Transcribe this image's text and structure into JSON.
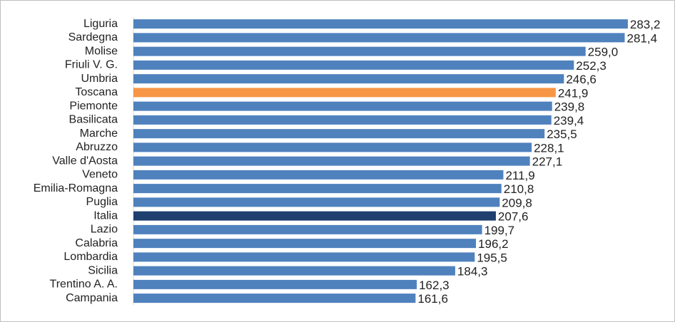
{
  "chart_data": {
    "type": "bar",
    "orientation": "horizontal",
    "categories": [
      "Liguria",
      "Sardegna",
      "Molise",
      "Friuli V. G.",
      "Umbria",
      "Toscana",
      "Piemonte",
      "Basilicata",
      "Marche",
      "Abruzzo",
      "Valle d'Aosta",
      "Veneto",
      "Emilia-Romagna",
      "Puglia",
      "Italia",
      "Lazio",
      "Calabria",
      "Lombardia",
      "Sicilia",
      "Trentino A. A.",
      "Campania"
    ],
    "values": [
      283.2,
      281.4,
      259.0,
      252.3,
      246.6,
      241.9,
      239.8,
      239.4,
      235.5,
      228.1,
      227.1,
      211.9,
      210.8,
      209.8,
      207.6,
      199.7,
      196.2,
      195.5,
      184.3,
      162.3,
      161.6
    ],
    "value_labels": [
      "283,2",
      "281,4",
      "259,0",
      "252,3",
      "246,6",
      "241,9",
      "239,8",
      "239,4",
      "235,5",
      "228,1",
      "227,1",
      "211,9",
      "210,8",
      "209,8",
      "207,6",
      "199,7",
      "196,2",
      "195,5",
      "184,3",
      "162,3",
      "161,6"
    ],
    "colors": [
      "#4f81bd",
      "#4f81bd",
      "#4f81bd",
      "#4f81bd",
      "#4f81bd",
      "#f79646",
      "#4f81bd",
      "#4f81bd",
      "#4f81bd",
      "#4f81bd",
      "#4f81bd",
      "#4f81bd",
      "#4f81bd",
      "#4f81bd",
      "#1f3f6e",
      "#4f81bd",
      "#4f81bd",
      "#4f81bd",
      "#4f81bd",
      "#4f81bd",
      "#4f81bd"
    ],
    "xlim": [
      0,
      300
    ]
  }
}
